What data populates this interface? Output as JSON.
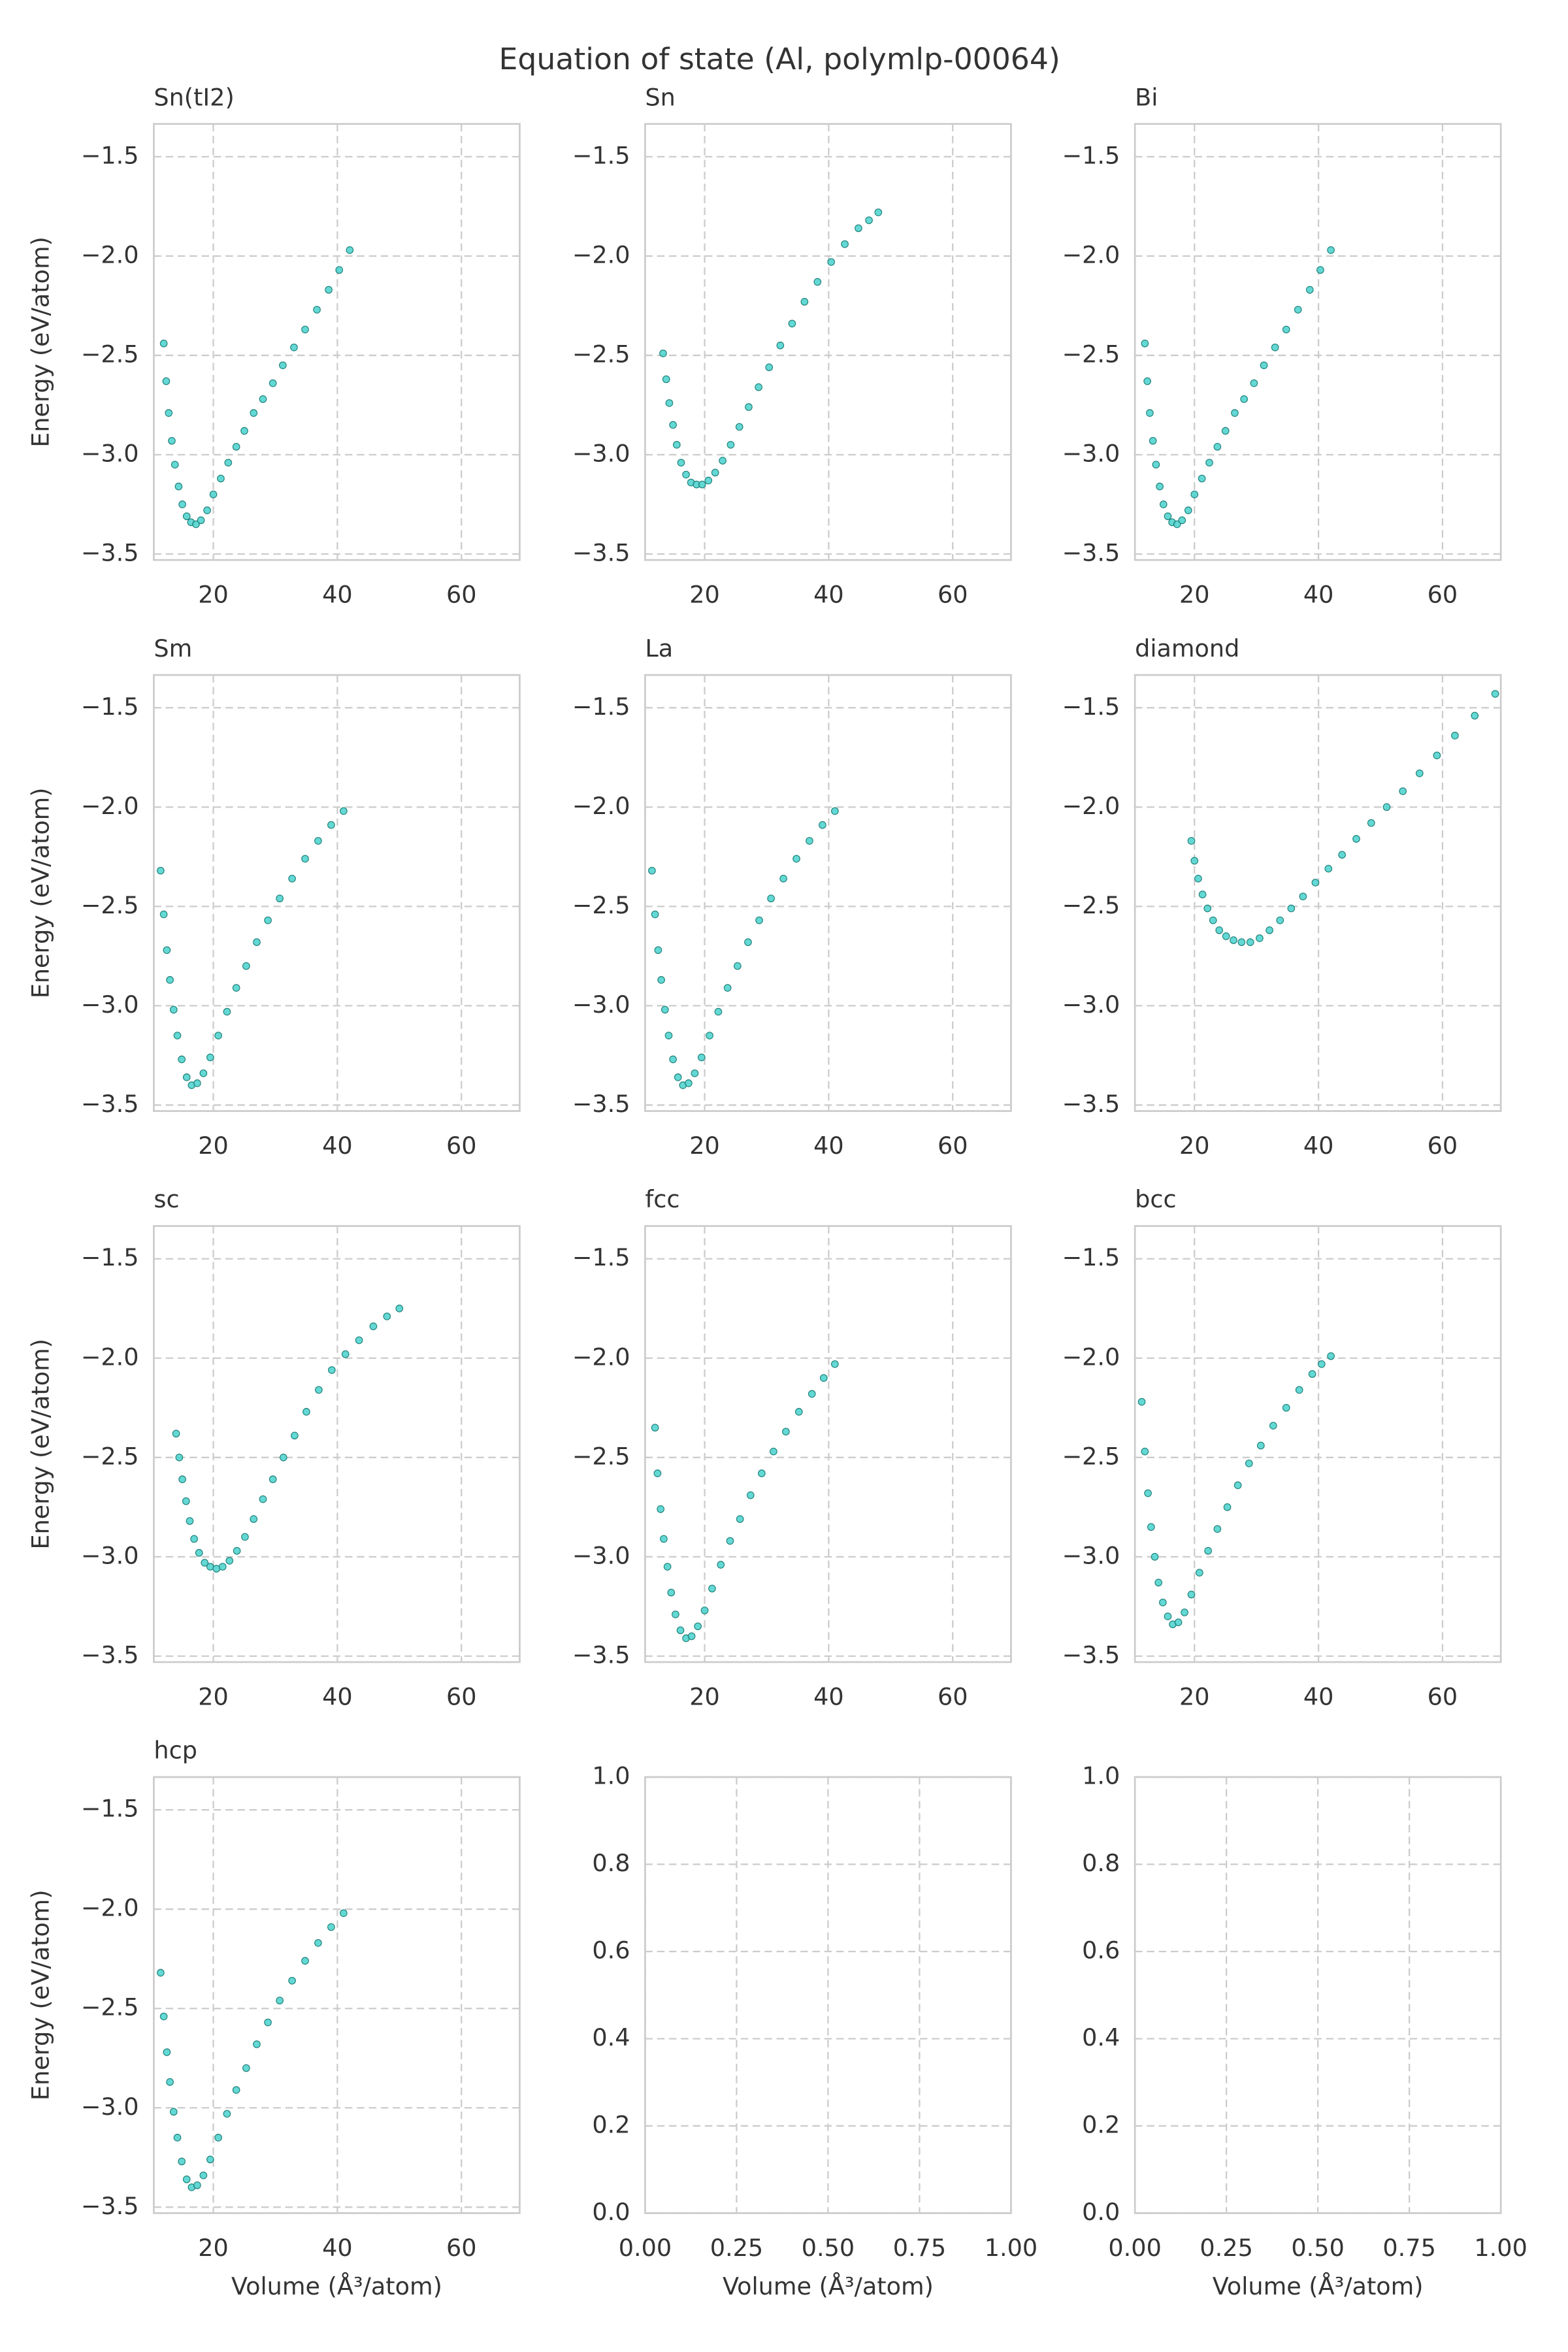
{
  "title": "Equation of state (Al, polymlp-00064)",
  "chart_data": [
    {
      "type": "scatter",
      "title": "Sn(tI2)",
      "ylabel": "Energy (eV/atom)",
      "color": "#48d1cc",
      "grid": true,
      "xlim": [
        10.4,
        69.4
      ],
      "ylim": [
        -3.53,
        -1.335
      ],
      "xticks": [
        20,
        40,
        60
      ],
      "yticks": [
        {
          "value": -3.5,
          "label": "−3.5"
        },
        {
          "value": -3.0,
          "label": "−3.0"
        },
        {
          "value": -2.5,
          "label": "−2.5"
        },
        {
          "value": -2.0,
          "label": "−2.0"
        },
        {
          "value": -1.5,
          "label": "−1.5"
        }
      ],
      "x": [
        12.0,
        12.4,
        12.8,
        13.3,
        13.8,
        14.4,
        15.0,
        15.7,
        16.4,
        17.2,
        18.0,
        19.0,
        20.0,
        21.2,
        22.4,
        23.7,
        25.0,
        26.5,
        28.0,
        29.6,
        31.2,
        33.0,
        34.8,
        36.7,
        38.6,
        40.3,
        42.0
      ],
      "y": [
        -2.44,
        -2.63,
        -2.79,
        -2.93,
        -3.05,
        -3.16,
        -3.25,
        -3.31,
        -3.34,
        -3.35,
        -3.33,
        -3.28,
        -3.2,
        -3.12,
        -3.04,
        -2.96,
        -2.88,
        -2.79,
        -2.72,
        -2.64,
        -2.55,
        -2.46,
        -2.37,
        -2.27,
        -2.17,
        -2.07,
        -1.97
      ]
    },
    {
      "type": "scatter",
      "title": "Sn",
      "color": "#48d1cc",
      "grid": true,
      "xlim": [
        10.4,
        69.4
      ],
      "ylim": [
        -3.53,
        -1.335
      ],
      "xticks": [
        20,
        40,
        60
      ],
      "yticks": [
        {
          "value": -3.5,
          "label": "−3.5"
        },
        {
          "value": -3.0,
          "label": "−3.0"
        },
        {
          "value": -2.5,
          "label": "−2.5"
        },
        {
          "value": -2.0,
          "label": "−2.0"
        },
        {
          "value": -1.5,
          "label": "−1.5"
        }
      ],
      "x": [
        13.3,
        13.8,
        14.3,
        14.9,
        15.5,
        16.2,
        17.0,
        17.8,
        18.7,
        19.6,
        20.6,
        21.7,
        22.9,
        24.2,
        25.6,
        27.1,
        28.7,
        30.4,
        32.2,
        34.1,
        36.1,
        38.2,
        40.4,
        42.6,
        44.8,
        46.5,
        48.0
      ],
      "y": [
        -2.49,
        -2.62,
        -2.74,
        -2.85,
        -2.95,
        -3.04,
        -3.1,
        -3.14,
        -3.15,
        -3.15,
        -3.13,
        -3.09,
        -3.03,
        -2.95,
        -2.86,
        -2.76,
        -2.66,
        -2.56,
        -2.45,
        -2.34,
        -2.23,
        -2.13,
        -2.03,
        -1.94,
        -1.86,
        -1.82,
        -1.78
      ]
    },
    {
      "type": "scatter",
      "title": "Bi",
      "color": "#48d1cc",
      "grid": true,
      "xlim": [
        10.4,
        69.4
      ],
      "ylim": [
        -3.53,
        -1.335
      ],
      "xticks": [
        20,
        40,
        60
      ],
      "yticks": [
        {
          "value": -3.5,
          "label": "−3.5"
        },
        {
          "value": -3.0,
          "label": "−3.0"
        },
        {
          "value": -2.5,
          "label": "−2.5"
        },
        {
          "value": -2.0,
          "label": "−2.0"
        },
        {
          "value": -1.5,
          "label": "−1.5"
        }
      ],
      "x": [
        12.0,
        12.4,
        12.8,
        13.3,
        13.8,
        14.4,
        15.0,
        15.7,
        16.4,
        17.2,
        18.0,
        19.0,
        20.0,
        21.2,
        22.4,
        23.7,
        25.0,
        26.5,
        28.0,
        29.6,
        31.2,
        33.0,
        34.8,
        36.7,
        38.6,
        40.3,
        42.0
      ],
      "y": [
        -2.44,
        -2.63,
        -2.79,
        -2.93,
        -3.05,
        -3.16,
        -3.25,
        -3.31,
        -3.34,
        -3.35,
        -3.33,
        -3.28,
        -3.2,
        -3.12,
        -3.04,
        -2.96,
        -2.88,
        -2.79,
        -2.72,
        -2.64,
        -2.55,
        -2.46,
        -2.37,
        -2.27,
        -2.17,
        -2.07,
        -1.97
      ]
    },
    {
      "type": "scatter",
      "title": "Sm",
      "ylabel": "Energy (eV/atom)",
      "color": "#48d1cc",
      "grid": true,
      "xlim": [
        10.4,
        69.4
      ],
      "ylim": [
        -3.53,
        -1.335
      ],
      "xticks": [
        20,
        40,
        60
      ],
      "yticks": [
        {
          "value": -3.5,
          "label": "−3.5"
        },
        {
          "value": -3.0,
          "label": "−3.0"
        },
        {
          "value": -2.5,
          "label": "−2.5"
        },
        {
          "value": -2.0,
          "label": "−2.0"
        },
        {
          "value": -1.5,
          "label": "−1.5"
        }
      ],
      "x": [
        11.5,
        12.0,
        12.5,
        13.0,
        13.6,
        14.2,
        14.9,
        15.7,
        16.5,
        17.4,
        18.4,
        19.5,
        20.8,
        22.2,
        23.7,
        25.3,
        27.0,
        28.8,
        30.7,
        32.7,
        34.8,
        36.9,
        39.0,
        41.0
      ],
      "y": [
        -2.32,
        -2.54,
        -2.72,
        -2.87,
        -3.02,
        -3.15,
        -3.27,
        -3.36,
        -3.4,
        -3.39,
        -3.34,
        -3.26,
        -3.15,
        -3.03,
        -2.91,
        -2.8,
        -2.68,
        -2.57,
        -2.46,
        -2.36,
        -2.26,
        -2.17,
        -2.09,
        -2.02
      ]
    },
    {
      "type": "scatter",
      "title": "La",
      "color": "#48d1cc",
      "grid": true,
      "xlim": [
        10.4,
        69.4
      ],
      "ylim": [
        -3.53,
        -1.335
      ],
      "xticks": [
        20,
        40,
        60
      ],
      "yticks": [
        {
          "value": -3.5,
          "label": "−3.5"
        },
        {
          "value": -3.0,
          "label": "−3.0"
        },
        {
          "value": -2.5,
          "label": "−2.5"
        },
        {
          "value": -2.0,
          "label": "−2.0"
        },
        {
          "value": -1.5,
          "label": "−1.5"
        }
      ],
      "x": [
        11.5,
        12.0,
        12.5,
        13.0,
        13.6,
        14.2,
        14.9,
        15.7,
        16.5,
        17.4,
        18.4,
        19.5,
        20.8,
        22.2,
        23.7,
        25.3,
        27.0,
        28.8,
        30.7,
        32.7,
        34.8,
        36.9,
        39.0,
        41.0
      ],
      "y": [
        -2.32,
        -2.54,
        -2.72,
        -2.87,
        -3.02,
        -3.15,
        -3.27,
        -3.36,
        -3.4,
        -3.39,
        -3.34,
        -3.26,
        -3.15,
        -3.03,
        -2.91,
        -2.8,
        -2.68,
        -2.57,
        -2.46,
        -2.36,
        -2.26,
        -2.17,
        -2.09,
        -2.02
      ]
    },
    {
      "type": "scatter",
      "title": "diamond",
      "color": "#48d1cc",
      "grid": true,
      "xlim": [
        10.4,
        69.4
      ],
      "ylim": [
        -3.53,
        -1.335
      ],
      "xticks": [
        20,
        40,
        60
      ],
      "yticks": [
        {
          "value": -3.5,
          "label": "−3.5"
        },
        {
          "value": -3.0,
          "label": "−3.0"
        },
        {
          "value": -2.5,
          "label": "−2.5"
        },
        {
          "value": -2.0,
          "label": "−2.0"
        },
        {
          "value": -1.5,
          "label": "−1.5"
        }
      ],
      "x": [
        19.5,
        20.0,
        20.6,
        21.3,
        22.1,
        23.0,
        24.0,
        25.1,
        26.3,
        27.6,
        29.0,
        30.5,
        32.1,
        33.8,
        35.6,
        37.5,
        39.5,
        41.6,
        43.8,
        46.1,
        48.5,
        51.0,
        53.6,
        56.3,
        59.1,
        62.0,
        65.2,
        68.5
      ],
      "y": [
        -2.17,
        -2.27,
        -2.36,
        -2.44,
        -2.51,
        -2.57,
        -2.62,
        -2.65,
        -2.67,
        -2.68,
        -2.68,
        -2.66,
        -2.62,
        -2.57,
        -2.51,
        -2.45,
        -2.38,
        -2.31,
        -2.24,
        -2.16,
        -2.08,
        -2.0,
        -1.92,
        -1.83,
        -1.74,
        -1.64,
        -1.54,
        -1.43
      ]
    },
    {
      "type": "scatter",
      "title": "sc",
      "ylabel": "Energy (eV/atom)",
      "color": "#48d1cc",
      "grid": true,
      "xlim": [
        10.4,
        69.4
      ],
      "ylim": [
        -3.53,
        -1.335
      ],
      "xticks": [
        20,
        40,
        60
      ],
      "yticks": [
        {
          "value": -3.5,
          "label": "−3.5"
        },
        {
          "value": -3.0,
          "label": "−3.0"
        },
        {
          "value": -2.5,
          "label": "−2.5"
        },
        {
          "value": -2.0,
          "label": "−2.0"
        },
        {
          "value": -1.5,
          "label": "−1.5"
        }
      ],
      "x": [
        14.0,
        14.5,
        15.0,
        15.6,
        16.2,
        16.9,
        17.7,
        18.6,
        19.5,
        20.5,
        21.5,
        22.6,
        23.8,
        25.1,
        26.5,
        28.0,
        29.6,
        31.3,
        33.1,
        35.0,
        37.0,
        39.1,
        41.3,
        43.5,
        45.8,
        48.0,
        50.0
      ],
      "y": [
        -2.38,
        -2.5,
        -2.61,
        -2.72,
        -2.82,
        -2.91,
        -2.98,
        -3.03,
        -3.05,
        -3.06,
        -3.05,
        -3.02,
        -2.97,
        -2.9,
        -2.81,
        -2.71,
        -2.61,
        -2.5,
        -2.39,
        -2.27,
        -2.16,
        -2.06,
        -1.98,
        -1.91,
        -1.84,
        -1.79,
        -1.75
      ]
    },
    {
      "type": "scatter",
      "title": "fcc",
      "color": "#48d1cc",
      "grid": true,
      "xlim": [
        10.4,
        69.4
      ],
      "ylim": [
        -3.53,
        -1.335
      ],
      "xticks": [
        20,
        40,
        60
      ],
      "yticks": [
        {
          "value": -3.5,
          "label": "−3.5"
        },
        {
          "value": -3.0,
          "label": "−3.0"
        },
        {
          "value": -2.5,
          "label": "−2.5"
        },
        {
          "value": -2.0,
          "label": "−2.0"
        },
        {
          "value": -1.5,
          "label": "−1.5"
        }
      ],
      "x": [
        12.0,
        12.4,
        12.9,
        13.4,
        14.0,
        14.6,
        15.3,
        16.1,
        17.0,
        17.9,
        18.9,
        20.0,
        21.2,
        22.6,
        24.1,
        25.7,
        27.4,
        29.2,
        31.1,
        33.1,
        35.2,
        37.3,
        39.2,
        41.0
      ],
      "y": [
        -2.35,
        -2.58,
        -2.76,
        -2.91,
        -3.05,
        -3.18,
        -3.29,
        -3.37,
        -3.41,
        -3.4,
        -3.35,
        -3.27,
        -3.16,
        -3.04,
        -2.92,
        -2.81,
        -2.69,
        -2.58,
        -2.47,
        -2.37,
        -2.27,
        -2.18,
        -2.1,
        -2.03
      ]
    },
    {
      "type": "scatter",
      "title": "bcc",
      "color": "#48d1cc",
      "grid": true,
      "xlim": [
        10.4,
        69.4
      ],
      "ylim": [
        -3.53,
        -1.335
      ],
      "xticks": [
        20,
        40,
        60
      ],
      "yticks": [
        {
          "value": -3.5,
          "label": "−3.5"
        },
        {
          "value": -3.0,
          "label": "−3.0"
        },
        {
          "value": -2.5,
          "label": "−2.5"
        },
        {
          "value": -2.0,
          "label": "−2.0"
        },
        {
          "value": -1.5,
          "label": "−1.5"
        }
      ],
      "x": [
        11.5,
        12.0,
        12.5,
        13.0,
        13.6,
        14.2,
        14.9,
        15.7,
        16.5,
        17.4,
        18.4,
        19.5,
        20.8,
        22.2,
        23.7,
        25.3,
        27.0,
        28.8,
        30.7,
        32.7,
        34.8,
        36.9,
        39.0,
        40.5,
        42.0
      ],
      "y": [
        -2.22,
        -2.47,
        -2.68,
        -2.85,
        -3.0,
        -3.13,
        -3.23,
        -3.3,
        -3.34,
        -3.33,
        -3.28,
        -3.19,
        -3.08,
        -2.97,
        -2.86,
        -2.75,
        -2.64,
        -2.53,
        -2.44,
        -2.34,
        -2.25,
        -2.16,
        -2.08,
        -2.03,
        -1.99
      ]
    },
    {
      "type": "scatter",
      "title": "hcp",
      "ylabel": "Energy (eV/atom)",
      "xlabel": "Volume (Å³/atom)",
      "color": "#48d1cc",
      "grid": true,
      "xlim": [
        10.4,
        69.4
      ],
      "ylim": [
        -3.53,
        -1.335
      ],
      "xticks": [
        20,
        40,
        60
      ],
      "yticks": [
        {
          "value": -3.5,
          "label": "−3.5"
        },
        {
          "value": -3.0,
          "label": "−3.0"
        },
        {
          "value": -2.5,
          "label": "−2.5"
        },
        {
          "value": -2.0,
          "label": "−2.0"
        },
        {
          "value": -1.5,
          "label": "−1.5"
        }
      ],
      "x": [
        11.5,
        12.0,
        12.5,
        13.0,
        13.6,
        14.2,
        14.9,
        15.7,
        16.5,
        17.4,
        18.4,
        19.5,
        20.8,
        22.2,
        23.7,
        25.3,
        27.0,
        28.8,
        30.7,
        32.7,
        34.8,
        36.9,
        39.0,
        41.0
      ],
      "y": [
        -2.32,
        -2.54,
        -2.72,
        -2.87,
        -3.02,
        -3.15,
        -3.27,
        -3.36,
        -3.4,
        -3.39,
        -3.34,
        -3.26,
        -3.15,
        -3.03,
        -2.91,
        -2.8,
        -2.68,
        -2.57,
        -2.46,
        -2.36,
        -2.26,
        -2.17,
        -2.09,
        -2.02
      ]
    },
    {
      "type": "scatter",
      "xlabel": "Volume (Å³/atom)",
      "grid": true,
      "xlim": [
        0,
        1
      ],
      "ylim": [
        0,
        1
      ],
      "xticks": [
        {
          "value": 0,
          "label": "0.00"
        },
        0.25,
        {
          "value": 0.5,
          "label": "0.50"
        },
        0.75,
        {
          "value": 1,
          "label": "1.00"
        }
      ],
      "yticks": [
        {
          "value": 0,
          "label": "0.0"
        },
        0.2,
        0.4,
        0.6,
        0.8,
        {
          "value": 1,
          "label": "1.0"
        }
      ]
    },
    {
      "type": "scatter",
      "xlabel": "Volume (Å³/atom)",
      "grid": true,
      "xlim": [
        0,
        1
      ],
      "ylim": [
        0,
        1
      ],
      "xticks": [
        {
          "value": 0,
          "label": "0.00"
        },
        0.25,
        {
          "value": 0.5,
          "label": "0.50"
        },
        0.75,
        {
          "value": 1,
          "label": "1.00"
        }
      ],
      "yticks": [
        {
          "value": 0,
          "label": "0.0"
        },
        0.2,
        0.4,
        0.6,
        0.8,
        {
          "value": 1,
          "label": "1.0"
        }
      ]
    }
  ]
}
